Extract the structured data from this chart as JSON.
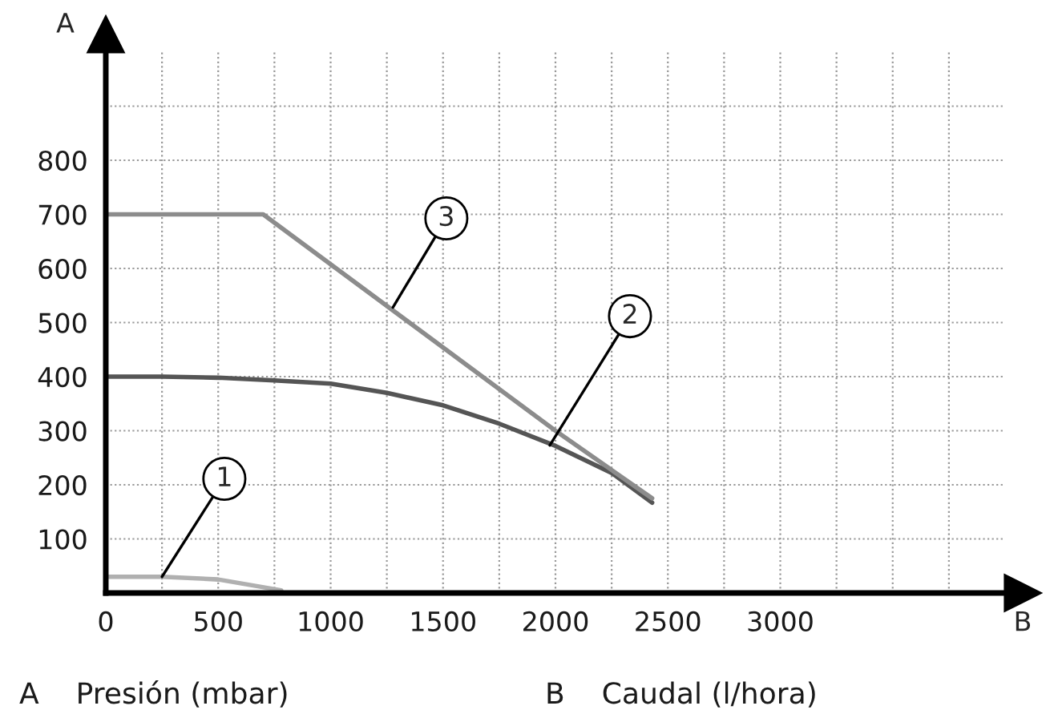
{
  "chart_data": {
    "type": "line",
    "xlabel": "B",
    "ylabel": "A",
    "xlim": [
      0,
      4000
    ],
    "ylim": [
      0,
      1000
    ],
    "xticks": [
      0,
      {
        "value": 250,
        "label": null
      },
      500,
      {
        "value": 750,
        "label": null
      },
      1000,
      {
        "value": 1250,
        "label": null
      },
      1500,
      {
        "value": 1750,
        "label": null
      },
      2000,
      {
        "value": 2250,
        "label": null
      },
      2500,
      {
        "value": 2750,
        "label": null
      },
      3000,
      {
        "value": 3250,
        "label": null
      },
      {
        "value": 3500,
        "label": null
      },
      {
        "value": 3750,
        "label": null
      }
    ],
    "yticks": [
      100,
      200,
      300,
      400,
      500,
      600,
      700,
      800,
      {
        "value": 900,
        "label": null
      }
    ],
    "grid": true,
    "marker": "none",
    "line_style": "solid",
    "series": [
      {
        "color": "#b0b0b0",
        "x": [
          0,
          250,
          500,
          780
        ],
        "values": [
          30,
          30,
          25,
          5
        ]
      },
      {
        "color": "#555555",
        "x": [
          0,
          250,
          500,
          750,
          1000,
          1250,
          1500,
          1750,
          2000,
          2250,
          2430
        ],
        "values": [
          400,
          400,
          398,
          393,
          387,
          370,
          347,
          313,
          272,
          222,
          167
        ]
      },
      {
        "color": "#8c8c8c",
        "x": [
          0,
          700,
          2000,
          2430
        ],
        "values": [
          700,
          700,
          300,
          175
        ]
      }
    ],
    "annotations": [
      {
        "text": "1",
        "x": 250,
        "y": 30
      },
      {
        "text": "2",
        "x": 1975,
        "y": 273
      },
      {
        "text": "3",
        "x": 1277,
        "y": 528
      },
      "A    Presión (mbar)",
      "B    Caudal (l/hora)"
    ]
  }
}
